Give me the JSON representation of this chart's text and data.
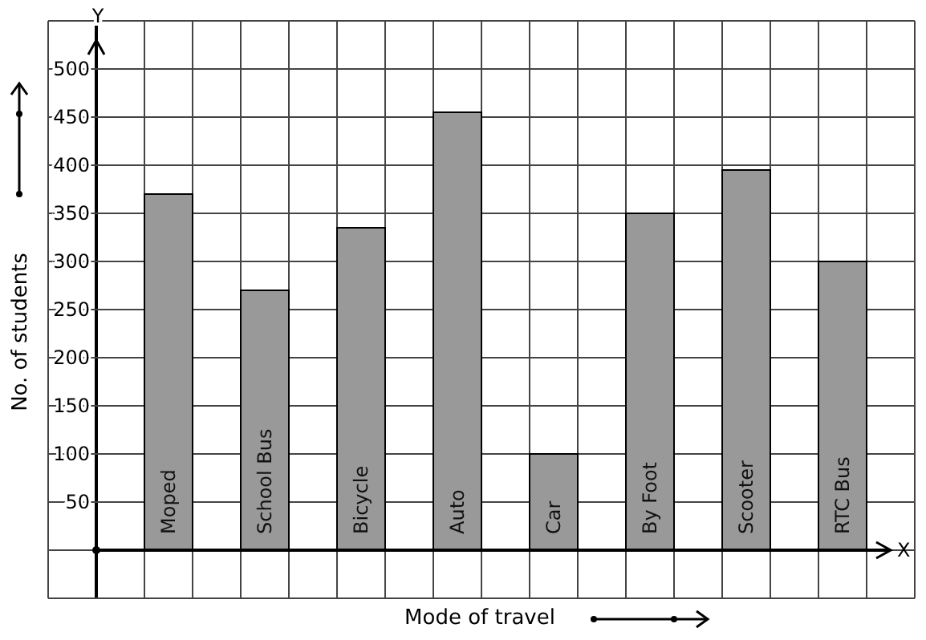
{
  "chart_data": {
    "type": "bar",
    "xlabel": "Mode of travel",
    "ylabel": "No. of students",
    "categories": [
      "Moped",
      "School Bus",
      "Bicycle",
      "Auto",
      "Car",
      "By Foot",
      "Scooter",
      "RTC Bus"
    ],
    "values": [
      370,
      270,
      335,
      455,
      100,
      350,
      395,
      300
    ],
    "color": "#999999",
    "ylim": [
      -50,
      550
    ],
    "yticks": [
      50,
      100,
      150,
      200,
      250,
      300,
      350,
      400,
      450,
      500
    ],
    "grid": true,
    "annotations": [
      {
        "text": "X"
      },
      {
        "text": "Y"
      }
    ]
  }
}
